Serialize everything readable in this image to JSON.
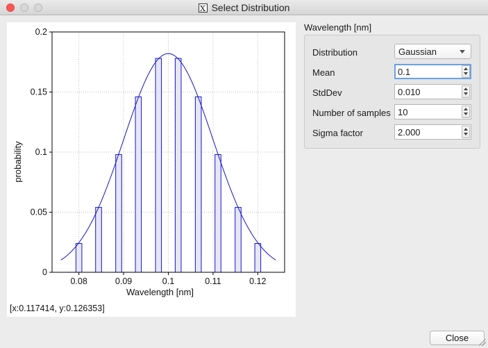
{
  "window": {
    "title": "Select Distribution",
    "title_icon": "X"
  },
  "status": {
    "coords": "[x:0.117414, y:0.126353]"
  },
  "panel": {
    "group_title": "Wavelength [nm]",
    "fields": [
      {
        "label": "Distribution",
        "value": "Gaussian",
        "kind": "combo"
      },
      {
        "label": "Mean",
        "value": "0.1",
        "kind": "spin"
      },
      {
        "label": "StdDev",
        "value": "0.010",
        "kind": "spin"
      },
      {
        "label": "Number of samples",
        "value": "10",
        "kind": "spin"
      },
      {
        "label": "Sigma factor",
        "value": "2.000",
        "kind": "spin"
      }
    ]
  },
  "buttons": {
    "close": "Close"
  },
  "colors": {
    "series": "#1414c8",
    "bar_fill": "#e6e6fa",
    "grid": "#bdbdbd"
  },
  "chart_data": {
    "type": "bar",
    "xlabel": "Wavelength [nm]",
    "ylabel": "probability",
    "xlim": [
      0.074,
      0.126
    ],
    "ylim": [
      0,
      0.2
    ],
    "xticks": [
      0.08,
      0.09,
      0.1,
      0.11,
      0.12
    ],
    "xtick_labels": [
      "0.08",
      "0.09",
      "0.1",
      "0.11",
      "0.12"
    ],
    "yticks": [
      0,
      0.05,
      0.1,
      0.15,
      0.2
    ],
    "ytick_labels": [
      "0",
      "0.05",
      "0.1",
      "0.15",
      "0.2"
    ],
    "grid": true,
    "bar_width": 0.00133,
    "series": [
      {
        "type": "bar",
        "x": [
          0.08,
          0.0844,
          0.0889,
          0.0933,
          0.0978,
          0.1022,
          0.1067,
          0.1111,
          0.1156,
          0.12
        ],
        "values": [
          0.024,
          0.054,
          0.098,
          0.146,
          0.178,
          0.178,
          0.146,
          0.098,
          0.054,
          0.024
        ]
      },
      {
        "type": "line",
        "mean": 0.1,
        "stddev": 0.01,
        "peak": 0.182,
        "x_range": [
          0.076,
          0.124
        ]
      }
    ]
  }
}
